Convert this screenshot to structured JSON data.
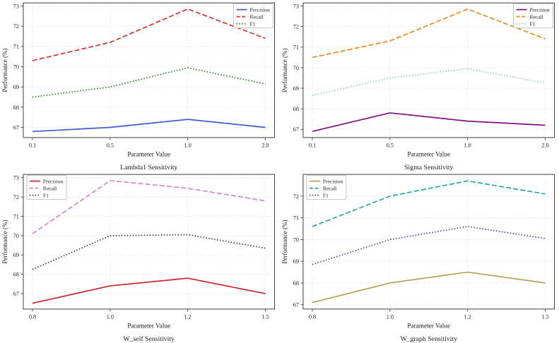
{
  "figure": {
    "background": "#ffffff",
    "spine_color": "#2b2b2b",
    "grid_color": "#cfcfcf",
    "text_color": "#1a1a1a"
  },
  "legend_labels": [
    "Precision",
    "Recall",
    "F1"
  ],
  "chart_data": [
    {
      "type": "line",
      "title": "Lambda1 Sensitivity",
      "xlabel": "Parameter Value",
      "ylabel": "Performance (%)",
      "categories": [
        "0.1",
        "0.5",
        "1.0",
        "2.0"
      ],
      "yticks": [
        67,
        68,
        69,
        70,
        71,
        72,
        73
      ],
      "ylim": [
        66.5,
        73.15
      ],
      "grid": true,
      "legend_position": "top-right",
      "series": [
        {
          "name": "Precision",
          "style": "solid",
          "color": "#3d5ed1",
          "values": [
            66.8,
            67.0,
            67.4,
            67.0
          ]
        },
        {
          "name": "Recall",
          "style": "dashed",
          "color": "#d6352c",
          "values": [
            70.3,
            71.2,
            72.85,
            71.4
          ]
        },
        {
          "name": "F1",
          "style": "dotted",
          "color": "#2e6d30",
          "values": [
            68.5,
            69.0,
            69.95,
            69.15
          ]
        }
      ]
    },
    {
      "type": "line",
      "title": "Sigma Sensitivity",
      "xlabel": "Parameter Value",
      "ylabel": "Performance (%)",
      "categories": [
        "0.1",
        "0.5",
        "1.0",
        "2.0"
      ],
      "yticks": [
        67,
        68,
        69,
        70,
        71,
        72,
        73
      ],
      "ylim": [
        66.6,
        73.15
      ],
      "grid": true,
      "legend_position": "top-right",
      "series": [
        {
          "name": "Precision",
          "style": "solid",
          "color": "#7d0f80",
          "values": [
            66.9,
            67.8,
            67.4,
            67.2
          ]
        },
        {
          "name": "Recall",
          "style": "dashed",
          "color": "#ec8a1f",
          "values": [
            70.5,
            71.3,
            72.85,
            71.4
          ]
        },
        {
          "name": "F1",
          "style": "dotted",
          "color": "#9ec2cd",
          "values": [
            68.65,
            69.5,
            69.95,
            69.25
          ]
        }
      ]
    },
    {
      "type": "line",
      "title": "W_self Sensitivity",
      "xlabel": "Parameter Value",
      "ylabel": "Performance (%)",
      "categories": [
        "0.8",
        "1.0",
        "1.2",
        "1.5"
      ],
      "yticks": [
        67,
        68,
        69,
        70,
        71,
        72,
        73
      ],
      "ylim": [
        66.2,
        73.17
      ],
      "grid": true,
      "legend_position": "top-left",
      "series": [
        {
          "name": "Precision",
          "style": "solid",
          "color": "#cd2226",
          "values": [
            66.5,
            67.4,
            67.8,
            67.0
          ]
        },
        {
          "name": "Recall",
          "style": "dashed",
          "color": "#db84d8",
          "values": [
            70.1,
            72.85,
            72.45,
            71.8
          ]
        },
        {
          "name": "F1",
          "style": "dotted",
          "color": "#3b3b3b",
          "values": [
            68.25,
            70.0,
            70.05,
            69.35
          ]
        }
      ]
    },
    {
      "type": "line",
      "title": "W_graph Sensitivity",
      "xlabel": "Parameter Value",
      "ylabel": "Performance (%)",
      "categories": [
        "0.8",
        "1.0",
        "1.2",
        "1.5"
      ],
      "yticks": [
        67,
        68,
        69,
        70,
        71,
        72
      ],
      "ylim": [
        66.8,
        73.0
      ],
      "grid": true,
      "legend_position": "top-left",
      "series": [
        {
          "name": "Precision",
          "style": "solid",
          "color": "#b3a155",
          "values": [
            67.1,
            68.0,
            68.5,
            68.0
          ]
        },
        {
          "name": "Recall",
          "style": "dashed",
          "color": "#2aa8a0",
          "values": [
            70.6,
            72.0,
            72.7,
            72.1
          ]
        },
        {
          "name": "F1",
          "style": "dotted",
          "color": "#44449b",
          "values": [
            68.85,
            70.0,
            70.6,
            70.05
          ]
        }
      ]
    }
  ]
}
